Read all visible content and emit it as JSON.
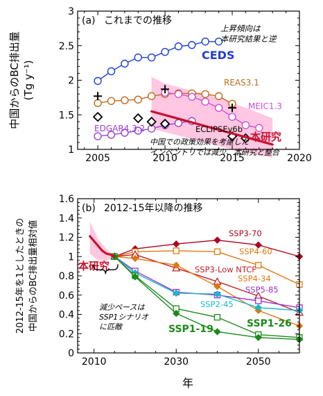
{
  "chart_data": [
    {
      "id": "a",
      "type": "line",
      "panel_label": "(a)",
      "title": "これまでの推移",
      "ylabel": "中国からのBC排出量\n(Tg y⁻¹)",
      "xlim": [
        2003.5,
        2020
      ],
      "ylim": [
        1,
        3
      ],
      "xticks": [
        2005,
        2010,
        2015,
        2020
      ],
      "yticks": [
        1,
        1.5,
        2,
        2.5,
        3
      ],
      "grid": false,
      "series": [
        {
          "name": "CEDS",
          "color": "#1f3fd0",
          "marker": "circle-open",
          "x": [
            2005,
            2006,
            2007,
            2008,
            2009,
            2010,
            2011,
            2012,
            2013,
            2014
          ],
          "y": [
            1.99,
            2.13,
            2.24,
            2.33,
            2.33,
            2.41,
            2.49,
            2.51,
            2.56,
            2.56
          ]
        },
        {
          "name": "REAS3.1",
          "color": "#c06a1a",
          "marker": "circle-open",
          "x": [
            2005,
            2006,
            2007,
            2008,
            2009,
            2010,
            2011,
            2012,
            2013,
            2014,
            2015
          ],
          "y": [
            1.67,
            1.7,
            1.71,
            1.72,
            1.77,
            1.8,
            1.81,
            1.81,
            1.8,
            1.77,
            1.66
          ]
        },
        {
          "name": "MEIC1.3",
          "color": "#d050d0",
          "marker": "circle-open",
          "x": [
            2010,
            2011,
            2012,
            2013,
            2014,
            2015,
            2016,
            2017
          ],
          "y": [
            1.82,
            1.8,
            1.76,
            1.69,
            1.6,
            1.47,
            1.35,
            1.31
          ]
        },
        {
          "name": "EDGAR4.3.2",
          "color": "#9a40d0",
          "marker": "circle-open",
          "x": [
            2005,
            2006,
            2007,
            2008,
            2009,
            2010,
            2011,
            2012
          ],
          "y": [
            1.19,
            1.21,
            1.24,
            1.27,
            1.3,
            1.35,
            1.38,
            1.41
          ]
        },
        {
          "name": "",
          "color": "#000000",
          "marker": "plus",
          "x": [
            2005,
            2010,
            2015
          ],
          "y": [
            1.77,
            1.87,
            1.6
          ]
        },
        {
          "name": "ECLIPSEv6b",
          "color": "#000000",
          "marker": "diamond-open",
          "x": [
            2005,
            2008,
            2009,
            2010,
            2015,
            2016
          ],
          "y": [
            1.47,
            1.45,
            1.4,
            1.37,
            1.19,
            1.16
          ]
        },
        {
          "name": "本研究",
          "color": "#c8102e",
          "marker": "none",
          "width": 3.2,
          "x": [
            2009,
            2018
          ],
          "y": [
            1.55,
            1.07
          ]
        }
      ],
      "band": {
        "color": "#ffb4d7",
        "x": [
          2009,
          2010,
          2012,
          2014,
          2016,
          2018
        ],
        "upper": [
          2.05,
          1.95,
          1.85,
          1.75,
          1.6,
          1.45
        ],
        "lower": [
          1.3,
          1.25,
          1.15,
          1.05,
          0.95,
          0.88
        ]
      },
      "labels": {
        "ceds": "CEDS",
        "reas": "REAS3.1",
        "meic": "MEIC1.3",
        "edgar": "EDGAR4.3.2",
        "eclipse": "ECLIPSEv6b",
        "this_study": "本研究",
        "note_top": [
          "上昇傾向は",
          "本研究結果と逆"
        ],
        "note_bottom": [
          "中国での政策効果を考慮した",
          "インベントリでは減少、本研究と整合"
        ]
      }
    },
    {
      "id": "b",
      "type": "line",
      "panel_label": "(b)",
      "title": "2012-15年以降の推移",
      "ylabel": "2012-15年を1としたときの\n中国からのBC排出量相対値",
      "xlabel": "年",
      "xlim": [
        2006,
        2060
      ],
      "ylim": [
        0,
        1.6
      ],
      "xticks": [
        2010,
        2030,
        2050
      ],
      "yticks": [
        0,
        0.2,
        0.4,
        0.6,
        0.8,
        1,
        1.2,
        1.4,
        1.6
      ],
      "grid": false,
      "series": [
        {
          "name": "SSP3-70",
          "color": "#b00020",
          "marker": "diamond",
          "x": [
            2015,
            2020,
            2030,
            2040,
            2050,
            2060
          ],
          "y": [
            1.0,
            1.08,
            1.13,
            1.17,
            1.12,
            1.0
          ]
        },
        {
          "name": "SSP4-60",
          "color": "#e07810",
          "marker": "square-open",
          "x": [
            2015,
            2020,
            2030,
            2040,
            2050,
            2060
          ],
          "y": [
            1.0,
            1.05,
            1.06,
            1.05,
            0.91,
            0.71
          ]
        },
        {
          "name": "SSP3-Low NTCF",
          "color": "#c0202a",
          "marker": "triangle-open",
          "x": [
            2015,
            2020,
            2030,
            2040,
            2050,
            2060
          ],
          "y": [
            1.0,
            1.02,
            0.88,
            0.74,
            0.59,
            0.42
          ]
        },
        {
          "name": "SSP4-34",
          "color": "#e07810",
          "marker": "diamond",
          "x": [
            2015,
            2020,
            2030,
            2040,
            2050,
            2060
          ],
          "y": [
            1.0,
            0.98,
            0.91,
            0.69,
            0.44,
            0.28
          ]
        },
        {
          "name": "SSP5-85",
          "color": "#9a30d0",
          "marker": "square-open",
          "x": [
            2015,
            2020,
            2030,
            2040,
            2050,
            2060
          ],
          "y": [
            1.0,
            0.85,
            0.63,
            0.6,
            0.54,
            0.47
          ]
        },
        {
          "name": "SSP2-45",
          "color": "#18b8c8",
          "marker": "diamond",
          "x": [
            2015,
            2020,
            2030,
            2040,
            2050,
            2060
          ],
          "y": [
            1.0,
            0.83,
            0.62,
            0.61,
            0.47,
            0.44
          ]
        },
        {
          "name": "SSP1-26",
          "color": "#1a8a1a",
          "marker": "square-open",
          "x": [
            2015,
            2020,
            2030,
            2040,
            2050,
            2060
          ],
          "y": [
            1.0,
            0.8,
            0.46,
            0.37,
            0.19,
            0.16
          ]
        },
        {
          "name": "SSP1-19",
          "color": "#1a8a1a",
          "marker": "diamond",
          "x": [
            2015,
            2020,
            2030,
            2040,
            2050,
            2060
          ],
          "y": [
            1.0,
            0.79,
            0.41,
            0.22,
            0.16,
            0.14
          ]
        },
        {
          "name": "本研究",
          "color": "#c8102e",
          "marker": "none",
          "width": 3.2,
          "x": [
            2009,
            2011,
            2012,
            2013,
            2014,
            2015
          ],
          "y": [
            1.21,
            1.11,
            1.06,
            1.03,
            1.02,
            1.0
          ]
        }
      ],
      "band": {
        "color": "#ffb4d7",
        "x": [
          2009,
          2011,
          2013,
          2015
        ],
        "upper": [
          1.36,
          1.18,
          1.08,
          1.01
        ],
        "lower": [
          1.03,
          0.96,
          0.96,
          0.99
        ]
      },
      "labels": {
        "ssp370": "SSP3-70",
        "ssp460": "SSP4-60",
        "ssp3low": "SSP3-Low NTCF",
        "ssp434": "SSP4-34",
        "ssp585": "SSP5-85",
        "ssp245": "SSP2-45",
        "ssp126": "SSP1-26",
        "ssp119": "SSP1-19",
        "this_study": "本研究",
        "note": [
          "減少ペースは",
          "SSP1シナリオ",
          "に匹敵"
        ]
      }
    }
  ]
}
